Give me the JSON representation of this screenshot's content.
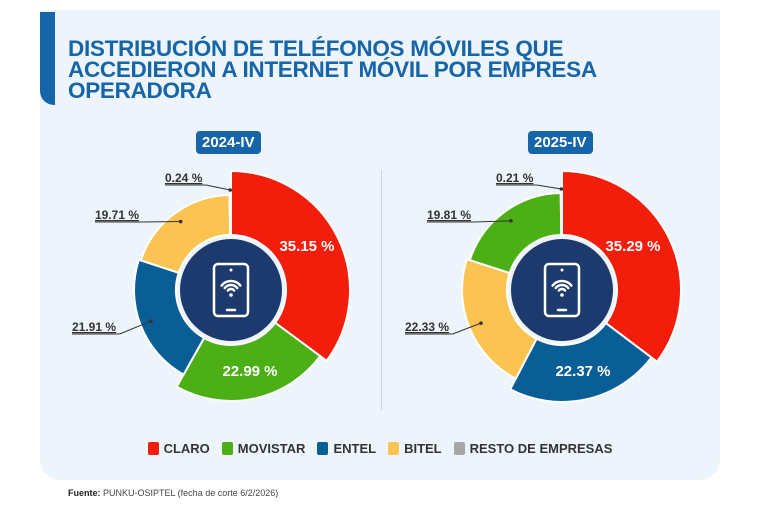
{
  "title": "DISTRIBUCIÓN DE TELÉFONOS MÓVILES QUE ACCEDIERON A INTERNET MÓVIL POR EMPRESA OPERADORA",
  "colors": {
    "CLARO": "#f21d0a",
    "MOVISTAR": "#4caf16",
    "ENTEL": "#0a5e96",
    "BITEL": "#fbc452",
    "RESTO DE EMPRESAS": "#a6a6a6",
    "center": "#1d3a6e",
    "title": "#1565a8"
  },
  "legend": [
    "CLARO",
    "MOVISTAR",
    "ENTEL",
    "BITEL",
    "RESTO DE EMPRESAS"
  ],
  "chart_data": [
    {
      "type": "pie",
      "title": "2024-IV",
      "icon": "phone-wifi-icon",
      "categories": [
        "CLARO",
        "MOVISTAR",
        "ENTEL",
        "BITEL",
        "RESTO DE EMPRESAS"
      ],
      "values": [
        35.15,
        22.99,
        21.91,
        19.71,
        0.24
      ],
      "labels": [
        "35.15 %",
        "22.99 %",
        "21.91 %",
        "19.71 %",
        "0.24 %"
      ]
    },
    {
      "type": "pie",
      "title": "2025-IV",
      "icon": "phone-wifi-icon",
      "categories": [
        "CLARO",
        "ENTEL",
        "BITEL",
        "MOVISTAR",
        "RESTO DE EMPRESAS"
      ],
      "values": [
        35.29,
        22.37,
        22.33,
        19.81,
        0.21
      ],
      "labels": [
        "35.29 %",
        "22.37 %",
        "22.33 %",
        "19.81 %",
        "0.21 %"
      ]
    }
  ],
  "footer": {
    "label": "Fuente:",
    "text": " PUNKU-OSIPTEL (fecha de corte 6/2/2026)"
  }
}
